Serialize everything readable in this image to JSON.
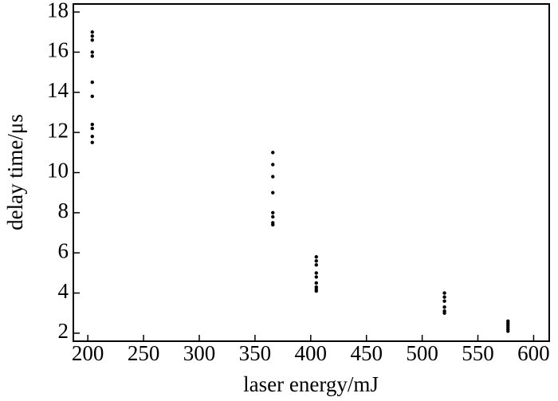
{
  "chart_data": {
    "type": "scatter",
    "xlabel": "laser energy/mJ",
    "ylabel": "delay time/μs",
    "x": [
      204,
      204,
      204,
      204,
      204,
      204,
      204,
      204,
      204,
      204,
      204,
      366,
      366,
      366,
      366,
      366,
      366,
      366,
      366,
      405,
      405,
      405,
      405,
      405,
      405,
      405,
      405,
      405,
      520,
      520,
      520,
      520,
      520,
      520,
      577,
      577,
      577,
      577,
      577,
      577
    ],
    "values": [
      17,
      16.8,
      16.6,
      16,
      15.8,
      14.5,
      13.8,
      12.4,
      12.2,
      11.8,
      11.5,
      11,
      10.4,
      9.8,
      9,
      8,
      7.8,
      7.5,
      7.4,
      5.8,
      5.6,
      5.4,
      5,
      4.8,
      4.5,
      4.3,
      4.2,
      4.1,
      4,
      3.8,
      3.6,
      3.3,
      3.1,
      3,
      2.6,
      2.5,
      2.4,
      2.3,
      2.2,
      2.1
    ],
    "color": "#000000",
    "xlim": [
      187,
      614
    ],
    "ylim": [
      1.6,
      18.4
    ],
    "xticks": [
      200,
      250,
      300,
      350,
      400,
      450,
      500,
      550,
      600
    ],
    "yticks": [
      2,
      4,
      6,
      8,
      10,
      12,
      14,
      16,
      18
    ]
  }
}
